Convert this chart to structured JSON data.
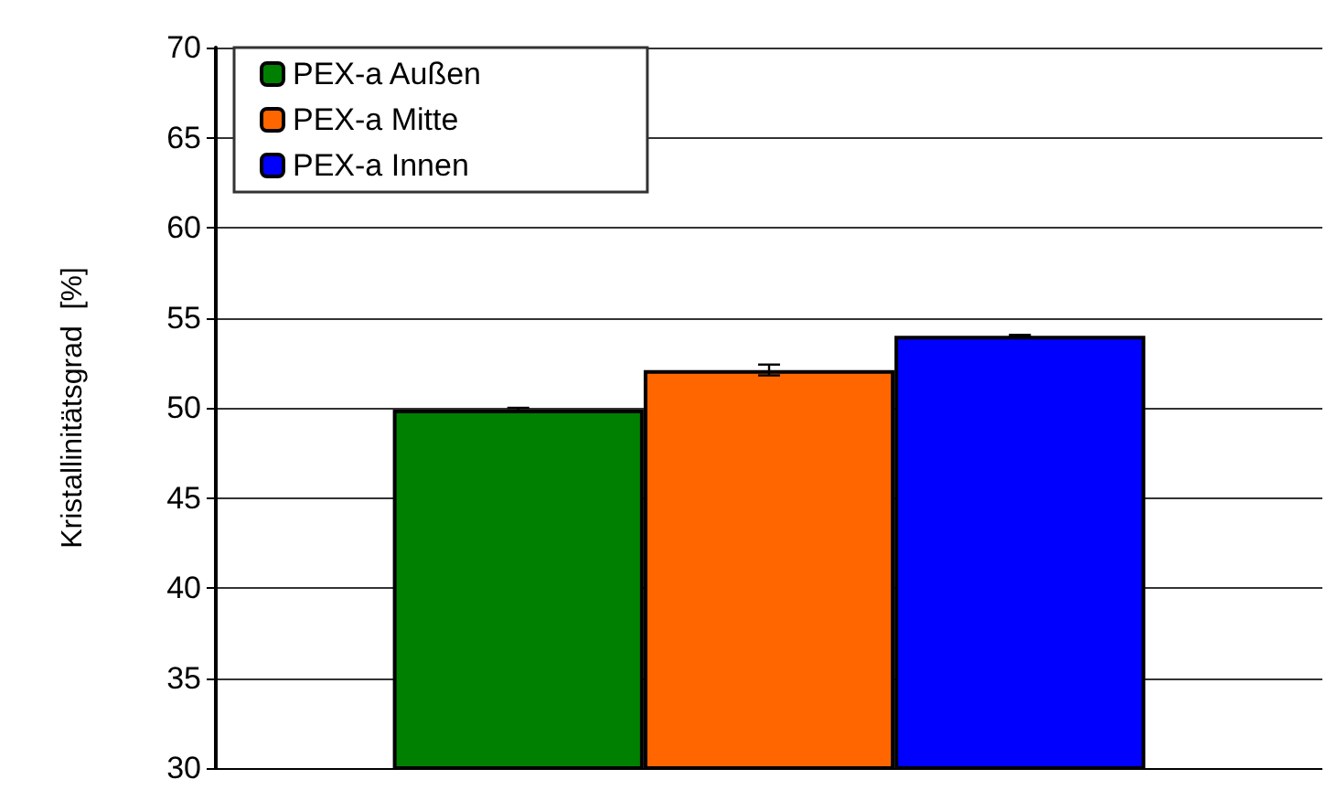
{
  "chart_data": {
    "type": "bar",
    "ylabel": "Kristallinitätsgrad  [%]",
    "categories": [
      null
    ],
    "series": [
      {
        "name": "PEX-a Außen",
        "color": "#008000",
        "values": [
          49.9
        ],
        "errors": [
          0.1
        ]
      },
      {
        "name": "PEX-a Mitte",
        "color": "#ff6600",
        "values": [
          52.1
        ],
        "errors": [
          0.3
        ]
      },
      {
        "name": "PEX-a Innen",
        "color": "#0000ff",
        "values": [
          54.0
        ],
        "errors": [
          0.05
        ]
      }
    ],
    "ylim": [
      30,
      70
    ],
    "yticks": [
      30,
      35,
      40,
      45,
      50,
      55,
      60,
      65,
      70
    ],
    "grid": "y",
    "legend": "top left",
    "tick_labels": "y"
  }
}
